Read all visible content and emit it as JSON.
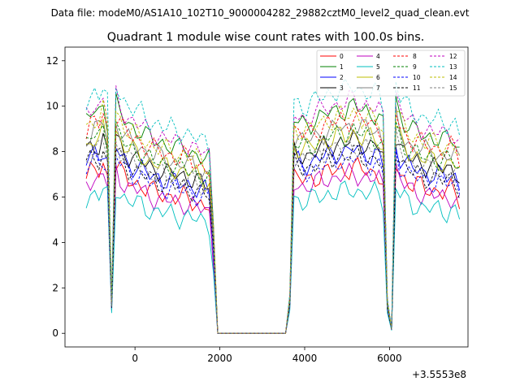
{
  "chart_data": {
    "type": "line",
    "suptitle": "Data file: modeM0/AS1A10_102T10_9000004282_29882cztM0_level2_quad_clean.evt",
    "title": "Quadrant 1 module wise count rates with 100.0s bins.",
    "xlabel": "",
    "ylabel": "",
    "x_offset_label": "+3.5553e8",
    "xlim": [
      -1650,
      7850
    ],
    "ylim": [
      -0.6,
      12.6
    ],
    "xticks": [
      0,
      2000,
      4000,
      6000
    ],
    "yticks": [
      0,
      2,
      4,
      6,
      8,
      10,
      12
    ],
    "xtick_labels": [
      "0",
      "2000",
      "4000",
      "6000"
    ],
    "ytick_labels": [
      "0",
      "2",
      "4",
      "6",
      "8",
      "10",
      "12"
    ],
    "legend_loc": "upper right",
    "legend_columns": 4,
    "x_start": -1150,
    "x_step": 100,
    "profile": [
      0.92,
      0.95,
      0.97,
      0.96,
      1.0,
      0.93,
      0.14,
      1.0,
      0.96,
      0.93,
      0.91,
      0.9,
      0.89,
      0.88,
      0.86,
      0.85,
      0.84,
      0.84,
      0.83,
      0.82,
      0.82,
      0.81,
      0.8,
      0.81,
      0.8,
      0.79,
      0.78,
      0.77,
      0.76,
      0.75,
      0.46,
      0.0,
      0.0,
      0.0,
      0.0,
      0.0,
      0.0,
      0.0,
      0.0,
      0.0,
      0.0,
      0.0,
      0.0,
      0.0,
      0.0,
      0.0,
      0.0,
      0.0,
      0.16,
      0.93,
      0.92,
      0.91,
      0.91,
      0.92,
      0.93,
      0.94,
      0.95,
      0.96,
      0.96,
      0.97,
      0.98,
      0.97,
      0.98,
      0.99,
      0.98,
      0.97,
      0.97,
      0.96,
      0.96,
      0.95,
      0.9,
      0.14,
      0.02,
      1.02,
      0.95,
      0.92,
      0.9,
      0.88,
      0.88,
      0.87,
      0.86,
      0.86,
      0.85,
      0.85,
      0.84,
      0.84,
      0.85,
      0.84,
      0.8
    ],
    "series": [
      {
        "name": "0",
        "color": "#ff0000",
        "dash": "solid",
        "level": 7.4
      },
      {
        "name": "1",
        "color": "#008000",
        "dash": "solid",
        "level": 10.1
      },
      {
        "name": "2",
        "color": "#0000ff",
        "dash": "solid",
        "level": 8.2
      },
      {
        "name": "3",
        "color": "#000000",
        "dash": "solid",
        "level": 8.6
      },
      {
        "name": "4",
        "color": "#bf00bf",
        "dash": "solid",
        "level": 7.1
      },
      {
        "name": "5",
        "color": "#00bfbf",
        "dash": "solid",
        "level": 6.4
      },
      {
        "name": "6",
        "color": "#bfbf00",
        "dash": "solid",
        "level": 8.9
      },
      {
        "name": "7",
        "color": "#808080",
        "dash": "solid",
        "level": 9.3
      },
      {
        "name": "8",
        "color": "#ff0000",
        "dash": "dashed",
        "level": 9.6
      },
      {
        "name": "9",
        "color": "#008000",
        "dash": "dashed",
        "level": 9.0
      },
      {
        "name": "10",
        "color": "#0000ff",
        "dash": "dashed",
        "level": 7.8
      },
      {
        "name": "11",
        "color": "#000000",
        "dash": "dashed",
        "level": 8.0
      },
      {
        "name": "12",
        "color": "#bf00bf",
        "dash": "dashed",
        "level": 10.4
      },
      {
        "name": "13",
        "color": "#00bfbf",
        "dash": "dashed",
        "level": 11.0
      },
      {
        "name": "14",
        "color": "#bfbf00",
        "dash": "dashed",
        "level": 9.8
      },
      {
        "name": "15",
        "color": "#808080",
        "dash": "dashed",
        "level": 8.4
      }
    ]
  }
}
